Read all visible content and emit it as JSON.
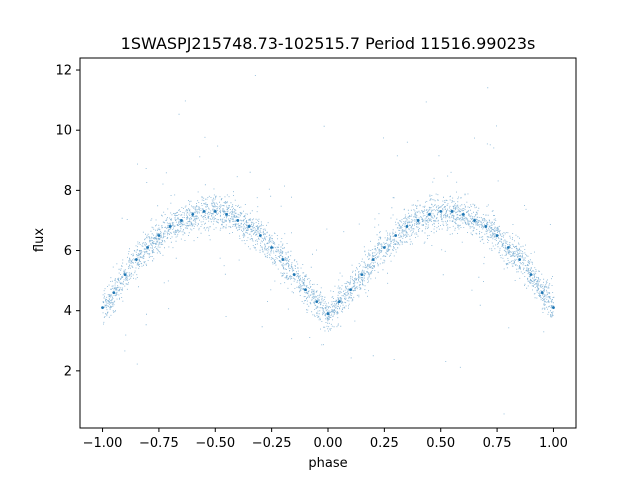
{
  "chart_data": {
    "type": "scatter",
    "title": "1SWASPJ215748.73-102515.7 Period 11516.99023s",
    "xlabel": "phase",
    "ylabel": "flux",
    "xlim": [
      -1.1,
      1.1
    ],
    "ylim": [
      0.1,
      12.4
    ],
    "grid": false,
    "legend": "none",
    "point_color": "#1f77b4",
    "xticks": [
      {
        "value": -1.0,
        "label": "−1.00"
      },
      {
        "value": -0.75,
        "label": "−0.75"
      },
      {
        "value": -0.5,
        "label": "−0.50"
      },
      {
        "value": -0.25,
        "label": "−0.25"
      },
      {
        "value": 0.0,
        "label": "0.00"
      },
      {
        "value": 0.25,
        "label": "0.25"
      },
      {
        "value": 0.5,
        "label": "0.50"
      },
      {
        "value": 0.75,
        "label": "0.75"
      },
      {
        "value": 1.0,
        "label": "1.00"
      }
    ],
    "yticks": [
      {
        "value": 2,
        "label": "2"
      },
      {
        "value": 4,
        "label": "4"
      },
      {
        "value": 6,
        "label": "6"
      },
      {
        "value": 8,
        "label": "8"
      },
      {
        "value": 10,
        "label": "10"
      },
      {
        "value": 12,
        "label": "12"
      }
    ],
    "series": [
      {
        "x": [
          -1.0,
          -0.95,
          -0.9,
          -0.85,
          -0.8,
          -0.75,
          -0.7,
          -0.65,
          -0.6,
          -0.55,
          -0.5,
          -0.45,
          -0.4,
          -0.35,
          -0.3,
          -0.25,
          -0.2,
          -0.15,
          -0.1,
          -0.05,
          0.0,
          0.05,
          0.1,
          0.15,
          0.2,
          0.25,
          0.3,
          0.35,
          0.4,
          0.45,
          0.5,
          0.55,
          0.6,
          0.65,
          0.7,
          0.75,
          0.8,
          0.85,
          0.9,
          0.95,
          1.0
        ],
        "y": [
          4.1,
          4.6,
          5.2,
          5.7,
          6.1,
          6.5,
          6.8,
          7.0,
          7.2,
          7.3,
          7.3,
          7.2,
          7.0,
          6.8,
          6.5,
          6.1,
          5.7,
          5.2,
          4.7,
          4.3,
          3.9,
          4.3,
          4.7,
          5.2,
          5.7,
          6.1,
          6.5,
          6.8,
          7.0,
          7.2,
          7.3,
          7.3,
          7.2,
          7.0,
          6.8,
          6.5,
          6.1,
          5.7,
          5.2,
          4.6,
          4.1
        ]
      }
    ]
  }
}
